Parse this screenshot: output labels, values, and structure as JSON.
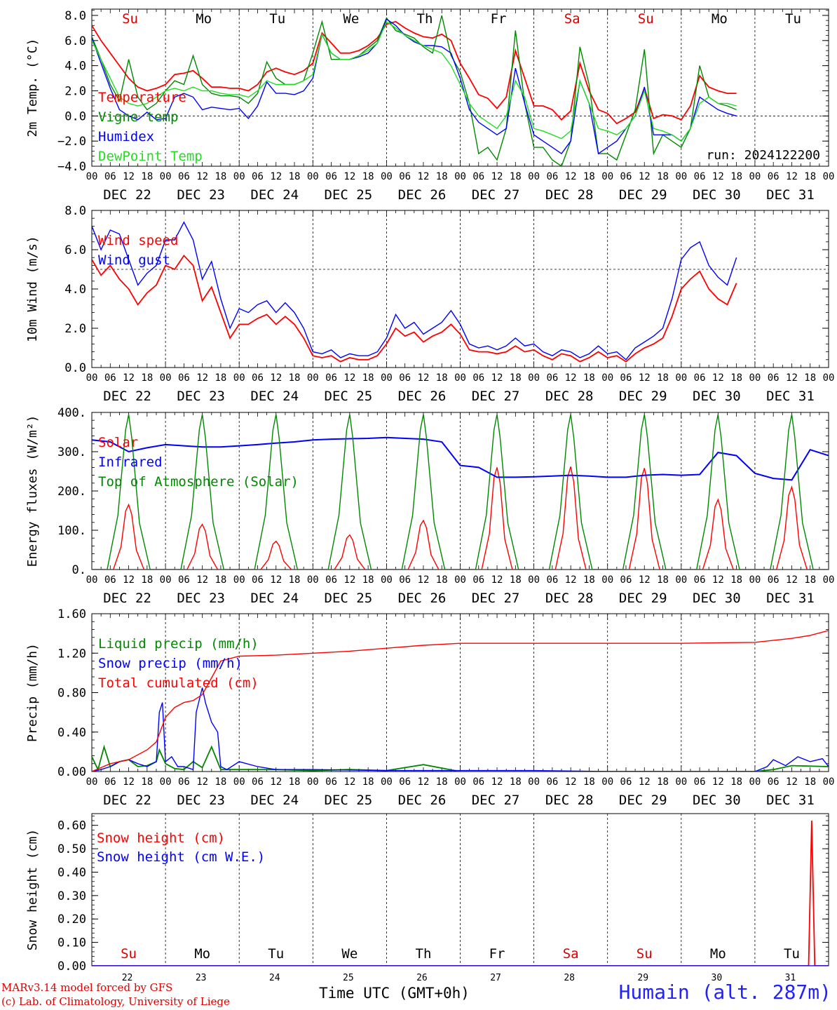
{
  "days_top": [
    "Su",
    "Mo",
    "Tu",
    "We",
    "Th",
    "Fr",
    "Sa",
    "Su",
    "Mo",
    "Tu"
  ],
  "days_top_colors": [
    "#dd0000",
    "#000000",
    "#000000",
    "#000000",
    "#000000",
    "#000000",
    "#dd0000",
    "#dd0000",
    "#000000",
    "#000000"
  ],
  "hour_labels": [
    "00",
    "06",
    "12",
    "18"
  ],
  "date_labels": [
    "DEC 22",
    "DEC 23",
    "DEC 24",
    "DEC 25",
    "DEC 26",
    "DEC 27",
    "DEC 28",
    "DEC 29",
    "DEC 30",
    "DEC 31"
  ],
  "day_numbers": [
    "22",
    "23",
    "24",
    "25",
    "26",
    "27",
    "28",
    "29",
    "30",
    "31"
  ],
  "run_label": "run: 2024122200",
  "footer": {
    "credit_line1": "MARv3.14 model forced by GFS",
    "credit_line2": "(c) Lab. of Climatology, University of Liege",
    "axis_title": "Time UTC (GMT+0h)",
    "station": "Humain (alt. 287m)"
  },
  "chart_data": [
    {
      "type": "line",
      "ylabel": "2m Temp. (°C)",
      "ylim": [
        -4,
        8.5
      ],
      "yticks": [
        "8.0",
        "6.0",
        "4.0",
        "2.0",
        "0.0",
        "−2.0",
        "−4.0"
      ],
      "ytick_values": [
        8,
        6,
        4,
        2,
        0,
        -2,
        -4
      ],
      "hline": 0,
      "x_hours": [
        0,
        3,
        6,
        9,
        12,
        15,
        18,
        21,
        24,
        27,
        30,
        33,
        36,
        39,
        42,
        45,
        48,
        51,
        54,
        57,
        60,
        63,
        66,
        69,
        72,
        75,
        78,
        81,
        84,
        87,
        90,
        93,
        96,
        99,
        102,
        105,
        108,
        111,
        114,
        117,
        120,
        123,
        126,
        129,
        132,
        135,
        138,
        141,
        144,
        147,
        150,
        153,
        156,
        159,
        162,
        165,
        168,
        171,
        174,
        177,
        180,
        183,
        186,
        189,
        192,
        195,
        198,
        201,
        204,
        207,
        210,
        213,
        216,
        219,
        222,
        225,
        228,
        231,
        234,
        237,
        240
      ],
      "series": [
        {
          "name": "Temperature",
          "color": "#ff0000",
          "values": [
            7.2,
            6.0,
            5.0,
            4.0,
            3.0,
            2.3,
            2.0,
            2.2,
            2.5,
            3.3,
            3.4,
            3.6,
            3.0,
            2.3,
            2.3,
            2.2,
            2.2,
            2.0,
            2.5,
            3.5,
            3.8,
            3.5,
            3.3,
            3.6,
            4.2,
            6.6,
            5.8,
            5.0,
            5.0,
            5.2,
            5.6,
            6.2,
            7.3,
            7.5,
            7.0,
            6.6,
            6.3,
            6.2,
            6.5,
            6.0,
            4.2,
            3.0,
            1.7,
            1.4,
            0.6,
            1.5,
            5.2,
            3.0,
            0.8,
            0.8,
            0.5,
            -0.3,
            0.4,
            4.2,
            2.0,
            0.5,
            0.2,
            -0.6,
            -0.2,
            0.3,
            2.2,
            -0.2,
            0.1,
            0.0,
            -0.3,
            0.8,
            3.2,
            2.3,
            2.0,
            1.8,
            1.8
          ]
        },
        {
          "name": "Vigne temp",
          "color": "#008800",
          "values": [
            6.3,
            4.5,
            2.5,
            1.2,
            4.5,
            1.5,
            0.5,
            1.0,
            2.0,
            2.8,
            2.5,
            4.8,
            2.5,
            1.8,
            1.6,
            1.6,
            1.5,
            1.0,
            1.8,
            4.3,
            3.0,
            2.5,
            2.5,
            2.8,
            5.0,
            7.5,
            4.5,
            4.5,
            4.5,
            4.8,
            5.4,
            6.0,
            7.8,
            6.8,
            6.5,
            6.2,
            5.5,
            5.0,
            8.0,
            4.8,
            3.5,
            1.0,
            -3.0,
            -2.5,
            -3.5,
            -1.0,
            6.8,
            1.0,
            -2.5,
            -2.5,
            -3.5,
            -4.0,
            -2.0,
            5.5,
            2.5,
            -3.0,
            -3.0,
            -3.5,
            -1.5,
            0.5,
            5.3,
            -3.0,
            -1.5,
            -2.0,
            -2.5,
            -1.0,
            4.0,
            1.5,
            1.0,
            0.8,
            0.5
          ]
        },
        {
          "name": "Humidex",
          "color": "#0000ff",
          "values": [
            6.2,
            4.2,
            2.2,
            0.5,
            0.0,
            -0.3,
            0.3,
            -0.3,
            -0.2,
            1.5,
            1.8,
            1.5,
            0.5,
            0.7,
            0.6,
            0.5,
            0.6,
            -0.2,
            0.8,
            2.7,
            1.8,
            1.8,
            1.7,
            2.0,
            3.0,
            6.5,
            5.0,
            4.5,
            4.5,
            4.7,
            5.0,
            5.8,
            7.7,
            7.2,
            6.4,
            5.9,
            5.6,
            5.6,
            5.5,
            5.0,
            3.0,
            0.5,
            -0.5,
            -1.0,
            -1.5,
            -1.0,
            3.8,
            1.0,
            -1.5,
            -2.0,
            -2.5,
            -3.0,
            -2.0,
            2.8,
            1.0,
            -3.0,
            -2.5,
            -2.0,
            -1.0,
            0.0,
            2.3,
            -1.5,
            -1.5,
            -1.5,
            -2.0,
            -1.0,
            1.5,
            1.0,
            0.5,
            0.2,
            0.0
          ]
        },
        {
          "name": "DewPoint Temp",
          "color": "#22dd22",
          "values": [
            6.0,
            4.5,
            3.0,
            1.5,
            1.0,
            0.8,
            1.0,
            1.5,
            2.0,
            2.2,
            2.0,
            2.3,
            2.0,
            2.0,
            1.8,
            1.7,
            1.7,
            1.5,
            2.0,
            2.8,
            2.5,
            2.5,
            2.5,
            2.8,
            3.3,
            6.5,
            5.0,
            4.5,
            4.5,
            4.8,
            5.2,
            5.8,
            7.5,
            7.0,
            6.4,
            6.0,
            5.6,
            5.3,
            5.0,
            4.0,
            2.5,
            1.0,
            0.0,
            -0.5,
            -1.0,
            0.0,
            2.8,
            1.5,
            -1.0,
            -1.2,
            -1.5,
            -1.8,
            -1.2,
            2.8,
            1.0,
            -1.0,
            -1.2,
            -1.5,
            -1.0,
            0.0,
            2.0,
            -1.0,
            -1.2,
            -1.5,
            -2.0,
            -1.0,
            1.0,
            1.5,
            1.0,
            1.0,
            0.8
          ]
        }
      ]
    },
    {
      "type": "line",
      "ylabel": "10m Wind (m/s)",
      "ylim": [
        0,
        8
      ],
      "yticks": [
        "8.0",
        "6.0",
        "4.0",
        "2.0",
        "0.0"
      ],
      "ytick_values": [
        8,
        6,
        4,
        2,
        0
      ],
      "hline": 5,
      "x_hours": [
        0,
        3,
        6,
        9,
        12,
        15,
        18,
        21,
        24,
        27,
        30,
        33,
        36,
        39,
        42,
        45,
        48,
        51,
        54,
        57,
        60,
        63,
        66,
        69,
        72,
        75,
        78,
        81,
        84,
        87,
        90,
        93,
        96,
        99,
        102,
        105,
        108,
        111,
        114,
        117,
        120,
        123,
        126,
        129,
        132,
        135,
        138,
        141,
        144,
        147,
        150,
        153,
        156,
        159,
        162,
        165,
        168,
        171,
        174,
        177,
        180,
        183,
        186,
        189,
        192,
        195,
        198,
        201,
        204,
        207,
        210,
        213,
        216,
        219,
        222,
        225,
        228,
        231,
        234,
        237,
        240
      ],
      "series": [
        {
          "name": "Wind speed",
          "color": "#ff0000",
          "values": [
            5.5,
            4.7,
            5.2,
            4.5,
            4.0,
            3.2,
            3.8,
            4.2,
            5.2,
            5.0,
            5.7,
            5.2,
            3.4,
            4.1,
            2.8,
            1.5,
            2.2,
            2.2,
            2.5,
            2.7,
            2.2,
            2.6,
            2.2,
            1.5,
            0.6,
            0.5,
            0.6,
            0.3,
            0.5,
            0.4,
            0.4,
            0.6,
            1.2,
            2.0,
            1.6,
            1.8,
            1.3,
            1.6,
            1.8,
            2.2,
            1.7,
            0.9,
            0.8,
            0.8,
            0.7,
            0.8,
            1.1,
            0.8,
            0.9,
            0.6,
            0.4,
            0.7,
            0.6,
            0.3,
            0.5,
            0.8,
            0.5,
            0.6,
            0.3,
            0.7,
            1.0,
            1.2,
            1.5,
            2.6,
            4.0,
            4.5,
            4.9,
            4.0,
            3.5,
            3.2,
            4.3
          ]
        },
        {
          "name": "Wind gust",
          "color": "#0000ff",
          "values": [
            7.2,
            6.0,
            7.0,
            6.8,
            5.5,
            4.2,
            4.8,
            5.2,
            6.5,
            6.5,
            7.4,
            6.5,
            4.5,
            5.4,
            3.5,
            2.0,
            3.0,
            2.8,
            3.2,
            3.4,
            2.8,
            3.3,
            2.8,
            2.0,
            0.8,
            0.7,
            0.9,
            0.5,
            0.7,
            0.6,
            0.6,
            0.8,
            1.5,
            2.7,
            2.0,
            2.3,
            1.7,
            2.0,
            2.3,
            2.9,
            2.2,
            1.2,
            1.0,
            1.1,
            0.9,
            1.1,
            1.5,
            1.1,
            1.2,
            0.8,
            0.6,
            0.9,
            0.8,
            0.5,
            0.7,
            1.1,
            0.7,
            0.8,
            0.4,
            1.0,
            1.3,
            1.6,
            2.0,
            3.5,
            5.5,
            6.1,
            6.4,
            5.2,
            4.6,
            4.2,
            5.6
          ]
        }
      ]
    },
    {
      "type": "line",
      "ylabel": "Energy fluxes (W/m²)",
      "ylim": [
        0,
        400
      ],
      "yticks": [
        "400.",
        "300.",
        "200.",
        "100.",
        "0."
      ],
      "ytick_values": [
        400,
        300,
        200,
        100,
        0
      ],
      "series": [
        {
          "name": "Solar",
          "color": "#ff0000",
          "peaks": [
            165,
            115,
            72,
            88,
            125,
            260,
            262,
            258,
            178,
            210
          ]
        },
        {
          "name": "Infrared",
          "color": "#0000ff",
          "x_hours": [
            0,
            6,
            12,
            18,
            24,
            30,
            36,
            42,
            48,
            54,
            60,
            66,
            72,
            78,
            84,
            90,
            96,
            102,
            108,
            114,
            120,
            126,
            132,
            138,
            144,
            150,
            156,
            162,
            168,
            174,
            180,
            186,
            192,
            198,
            204,
            210,
            216,
            222,
            228,
            234,
            240
          ],
          "values": [
            330,
            325,
            300,
            310,
            318,
            315,
            312,
            312,
            315,
            318,
            322,
            325,
            330,
            332,
            333,
            334,
            336,
            334,
            332,
            325,
            265,
            260,
            235,
            235,
            236,
            238,
            240,
            238,
            235,
            235,
            240,
            242,
            240,
            242,
            298,
            290,
            245,
            232,
            228,
            305,
            290
          ]
        },
        {
          "name": "Top of Atmosphere (Solar)",
          "color": "#008800",
          "peak": 395
        }
      ]
    },
    {
      "type": "line",
      "ylabel": "Precip (mm/h)",
      "ylim": [
        0,
        1.6
      ],
      "yticks": [
        "1.60",
        "1.20",
        "0.80",
        "0.40",
        "0.00"
      ],
      "ytick_values": [
        1.6,
        1.2,
        0.8,
        0.4,
        0
      ],
      "series": [
        {
          "name": "Liquid precip (mm/h)",
          "color": "#008800",
          "x_hours": [
            0,
            2,
            4,
            6,
            9,
            12,
            15,
            18,
            21,
            22,
            24,
            27,
            30,
            33,
            36,
            39,
            42,
            48,
            60,
            72,
            84,
            96,
            108,
            120,
            144,
            168,
            192,
            216,
            222,
            228,
            240
          ],
          "values": [
            0.15,
            0.02,
            0.25,
            0.05,
            0.1,
            0.12,
            0.05,
            0.06,
            0.1,
            0.22,
            0.08,
            0.03,
            0.02,
            0.1,
            0.04,
            0.25,
            0.02,
            0.02,
            0.02,
            0.01,
            0.02,
            0.01,
            0.07,
            0.0,
            0.0,
            0.0,
            0.0,
            0.0,
            0.02,
            0.06,
            0.05
          ]
        },
        {
          "name": "Snow precip (mm/h)",
          "color": "#0000ff",
          "x_hours": [
            0,
            3,
            6,
            9,
            12,
            15,
            18,
            21,
            22,
            23,
            24,
            26,
            28,
            30,
            33,
            34,
            36,
            37,
            39,
            41,
            42,
            44,
            48,
            54,
            60,
            72,
            96,
            120,
            144,
            168,
            192,
            216,
            220,
            222,
            226,
            230,
            234,
            238,
            240
          ],
          "values": [
            0.0,
            0.02,
            0.05,
            0.1,
            0.12,
            0.08,
            0.05,
            0.1,
            0.6,
            0.7,
            0.1,
            0.15,
            0.05,
            0.05,
            0.02,
            0.6,
            0.85,
            0.7,
            0.5,
            0.4,
            0.05,
            0.02,
            0.1,
            0.05,
            0.02,
            0.02,
            0.01,
            0.01,
            0.01,
            0.0,
            0.0,
            0.0,
            0.05,
            0.12,
            0.06,
            0.15,
            0.1,
            0.13,
            0.05
          ]
        },
        {
          "name": "Total cumulated (cm)",
          "color": "#ff0000",
          "x_hours": [
            0,
            6,
            12,
            18,
            21,
            24,
            27,
            30,
            33,
            36,
            39,
            42,
            48,
            60,
            72,
            84,
            96,
            108,
            120,
            144,
            168,
            192,
            216,
            228,
            234,
            240
          ],
          "values": [
            0.0,
            0.08,
            0.12,
            0.22,
            0.3,
            0.55,
            0.65,
            0.7,
            0.72,
            0.78,
            0.95,
            1.12,
            1.17,
            1.18,
            1.2,
            1.22,
            1.25,
            1.28,
            1.3,
            1.3,
            1.3,
            1.3,
            1.31,
            1.35,
            1.38,
            1.43
          ]
        }
      ]
    },
    {
      "type": "line",
      "ylabel": "Snow height (cm)",
      "ylim": [
        0,
        0.65
      ],
      "yticks": [
        "0.60",
        "0.50",
        "0.40",
        "0.30",
        "0.20",
        "0.10",
        "0.00"
      ],
      "ytick_values": [
        0.6,
        0.5,
        0.4,
        0.3,
        0.2,
        0.1,
        0
      ],
      "series": [
        {
          "name": "Snow height (cm)",
          "color": "#ff0000",
          "x_hours": [
            0,
            233.5,
            234.5,
            235.5,
            240
          ],
          "values": [
            0,
            0,
            0.62,
            0,
            0
          ]
        },
        {
          "name": "Snow height (cm W.E.)",
          "color": "#0000ff",
          "x_hours": [
            0,
            240
          ],
          "values": [
            0,
            0
          ]
        }
      ]
    }
  ]
}
